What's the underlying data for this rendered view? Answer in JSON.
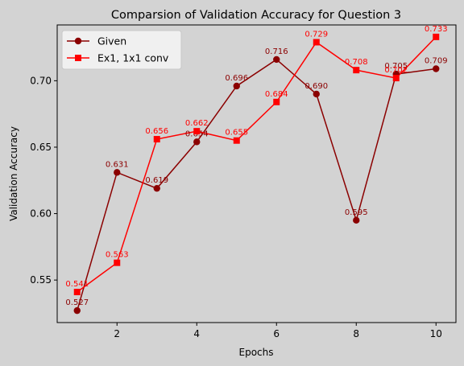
{
  "chart_data": {
    "type": "line",
    "title": "Comparsion of Validation Accuracy for Question 3",
    "xlabel": "Epochs",
    "ylabel": "Validation Accuracy",
    "x": [
      1,
      2,
      3,
      4,
      5,
      6,
      7,
      8,
      9,
      10
    ],
    "xlim": [
      0.5,
      10.5
    ],
    "ylim": [
      0.518,
      0.742
    ],
    "xticks": [
      2,
      4,
      6,
      8,
      10
    ],
    "yticks": [
      0.55,
      0.6,
      0.65,
      0.7
    ],
    "ytick_labels": [
      "0.55",
      "0.60",
      "0.65",
      "0.70"
    ],
    "grid": false,
    "legend_position": "upper-left",
    "series": [
      {
        "name": "Given",
        "color": "#8b0000",
        "marker": "circle",
        "values": [
          0.527,
          0.631,
          0.619,
          0.654,
          0.696,
          0.716,
          0.69,
          0.595,
          0.705,
          0.709
        ],
        "labels": [
          "0.527",
          "0.631",
          "0.619",
          "0.654",
          "0.696",
          "0.716",
          "0.690",
          "0.595",
          "0.705",
          "0.709"
        ]
      },
      {
        "name": "Ex1, 1x1 conv",
        "color": "#ff0000",
        "marker": "square",
        "values": [
          0.541,
          0.563,
          0.656,
          0.662,
          0.655,
          0.684,
          0.729,
          0.708,
          0.702,
          0.733
        ],
        "labels": [
          "0.541",
          "0.563",
          "0.656",
          "0.662",
          "0.655",
          "0.684",
          "0.729",
          "0.708",
          "0.702",
          "0.733"
        ]
      }
    ]
  }
}
